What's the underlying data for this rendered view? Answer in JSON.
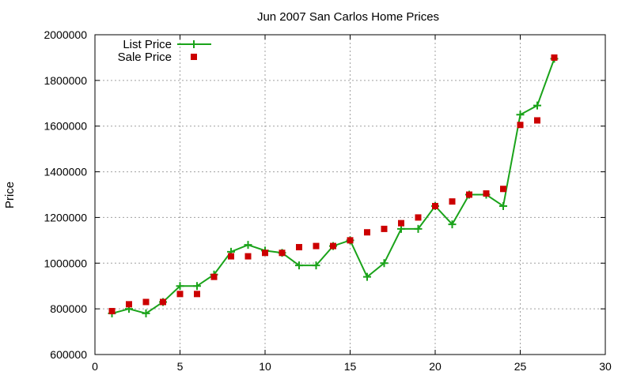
{
  "chart_data": {
    "type": "line",
    "title": "Jun 2007 San Carlos Home Prices",
    "xlabel": "",
    "ylabel": "Price",
    "xlim": [
      0,
      30
    ],
    "ylim": [
      600000,
      2000000
    ],
    "xticks": [
      0,
      5,
      10,
      15,
      20,
      25,
      30
    ],
    "yticks": [
      600000,
      800000,
      1000000,
      1200000,
      1400000,
      1600000,
      1800000,
      2000000
    ],
    "grid": true,
    "legend_position": "top-left",
    "series": [
      {
        "name": "List Price",
        "style": "line-with-plus-markers",
        "color": "#1aa31a",
        "x": [
          1,
          2,
          3,
          4,
          5,
          6,
          7,
          8,
          9,
          10,
          11,
          12,
          13,
          14,
          15,
          16,
          17,
          18,
          19,
          20,
          21,
          22,
          23,
          24,
          25,
          26,
          27
        ],
        "values": [
          780000,
          800000,
          780000,
          830000,
          900000,
          900000,
          950000,
          1050000,
          1080000,
          1055000,
          1045000,
          990000,
          990000,
          1075000,
          1100000,
          940000,
          1000000,
          1150000,
          1150000,
          1250000,
          1170000,
          1300000,
          1300000,
          1250000,
          1650000,
          1690000,
          1895000
        ]
      },
      {
        "name": "Sale Price",
        "style": "square-markers",
        "color": "#cc0000",
        "x": [
          1,
          2,
          3,
          4,
          5,
          6,
          7,
          8,
          9,
          10,
          11,
          12,
          13,
          14,
          15,
          16,
          17,
          18,
          19,
          20,
          21,
          22,
          23,
          24,
          25,
          26,
          27
        ],
        "values": [
          790000,
          820000,
          830000,
          830000,
          865000,
          865000,
          940000,
          1030000,
          1030000,
          1045000,
          1045000,
          1070000,
          1075000,
          1075000,
          1100000,
          1135000,
          1150000,
          1175000,
          1200000,
          1250000,
          1270000,
          1300000,
          1305000,
          1325000,
          1605000,
          1625000,
          1900000
        ]
      }
    ]
  }
}
